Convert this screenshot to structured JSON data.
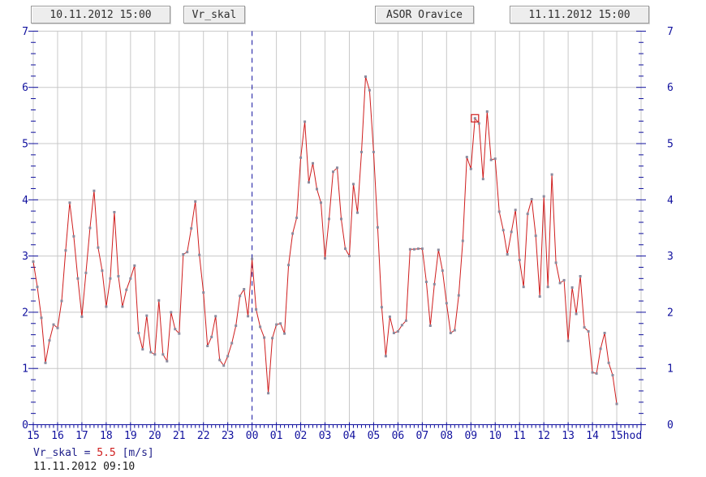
{
  "header": {
    "start_datetime": "10.11.2012 15:00",
    "channel": "Vr_skal",
    "station": "ASOR Oravice",
    "end_datetime": "11.11.2012 15:00"
  },
  "readout": {
    "label": "Vr_skal",
    "equals": "=",
    "value": "5.5",
    "unit": "[m/s]",
    "timestamp": "11.11.2012 09:10"
  },
  "chart_data": {
    "type": "line",
    "series_name": "Vr_skal",
    "unit": "m/s",
    "x_start": "10.11.2012 15:00",
    "x_end": "11.11.2012 15:00",
    "sample_interval_minutes": 10,
    "ylim": [
      0,
      7
    ],
    "y_ticks": [
      0,
      1,
      2,
      3,
      4,
      5,
      6,
      7
    ],
    "y_minor_step": 0.2,
    "x_tick_labels": [
      "15",
      "16",
      "17",
      "18",
      "19",
      "20",
      "21",
      "22",
      "23",
      "00",
      "01",
      "02",
      "03",
      "04",
      "05",
      "06",
      "07",
      "08",
      "09",
      "10",
      "11",
      "12",
      "13",
      "14",
      "15"
    ],
    "x_axis_suffix": "hod",
    "grid": true,
    "midnight_line_index": 54,
    "marked_point": {
      "index": 109,
      "time": "11.11.2012 09:10",
      "value": 5.45,
      "display_value": "5.5"
    },
    "values": [
      2.9,
      2.45,
      1.9,
      1.1,
      1.5,
      1.78,
      1.72,
      2.2,
      3.1,
      3.95,
      3.35,
      2.6,
      1.92,
      2.7,
      3.5,
      4.16,
      3.15,
      2.74,
      2.1,
      2.6,
      3.78,
      2.64,
      2.1,
      2.4,
      2.6,
      2.83,
      1.63,
      1.34,
      1.94,
      1.29,
      1.25,
      2.21,
      1.25,
      1.13,
      2.0,
      1.7,
      1.62,
      3.03,
      3.07,
      3.49,
      3.97,
      3.02,
      2.35,
      1.4,
      1.56,
      1.93,
      1.15,
      1.05,
      1.22,
      1.45,
      1.76,
      2.29,
      2.41,
      1.93,
      2.95,
      2.05,
      1.74,
      1.55,
      0.56,
      1.54,
      1.78,
      1.8,
      1.62,
      2.84,
      3.4,
      3.68,
      4.75,
      5.39,
      4.31,
      4.65,
      4.19,
      3.95,
      2.96,
      3.66,
      4.5,
      4.57,
      3.66,
      3.13,
      3.0,
      4.28,
      3.77,
      4.85,
      6.19,
      5.95,
      4.85,
      3.51,
      2.09,
      1.22,
      1.92,
      1.63,
      1.66,
      1.77,
      1.85,
      3.12,
      3.12,
      3.13,
      3.13,
      2.54,
      1.76,
      2.5,
      3.11,
      2.74,
      2.16,
      1.63,
      1.68,
      2.3,
      3.27,
      4.76,
      4.55,
      5.45,
      5.36,
      4.37,
      5.57,
      4.71,
      4.73,
      3.79,
      3.46,
      3.03,
      3.43,
      3.82,
      2.93,
      2.45,
      3.75,
      4.01,
      3.36,
      2.28,
      4.06,
      2.45,
      4.45,
      2.88,
      2.52,
      2.57,
      1.49,
      2.44,
      1.97,
      2.64,
      1.73,
      1.66,
      0.93,
      0.91,
      1.35,
      1.63,
      1.1,
      0.88,
      0.37
    ],
    "colors": {
      "line_red": "#cf1d1d",
      "marker_gray": "#8b8b9e",
      "axis_navy": "#10109e",
      "grid_gray": "#c8c8c8",
      "marked_red": "#cf1d1d"
    }
  }
}
